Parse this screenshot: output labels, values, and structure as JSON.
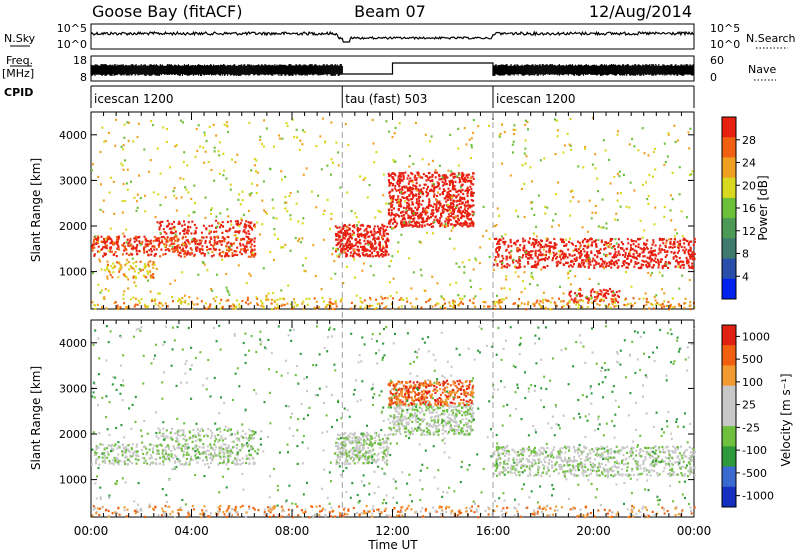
{
  "header": {
    "station": "Goose Bay (fitACF)",
    "beam": "Beam 07",
    "date": "12/Aug/2014"
  },
  "summary_rows": {
    "nsky": {
      "label": "N.Sky",
      "tick_top": "10^5",
      "tick_bottom": "10^0",
      "right_label": "N.Search",
      "right_tick_top": "10^5",
      "right_tick_bottom": "10^0"
    },
    "freq": {
      "label_line1": "Freq.",
      "label_line2": "[MHz]",
      "tick_top": "18",
      "tick_bottom": "8",
      "right_label": "Nave",
      "right_tick_top": "60",
      "right_tick_bottom": "0"
    },
    "cpid": {
      "label": "CPID",
      "segments": [
        {
          "start_hour": 0,
          "end_hour": 10,
          "text": "icescan 1200"
        },
        {
          "start_hour": 10,
          "end_hour": 16,
          "text": "tau (fast) 503"
        },
        {
          "start_hour": 16,
          "end_hour": 24,
          "text": "icescan 1200"
        }
      ]
    }
  },
  "colors": {
    "power_scale": [
      "#0022ee",
      "#2a4faa",
      "#3f7a6e",
      "#4c9a55",
      "#6cc03a",
      "#d8d820",
      "#f0a020",
      "#f06010",
      "#e82010"
    ],
    "velocity_scale": [
      "#1530c0",
      "#3a6ad0",
      "#2e9a3c",
      "#70c040",
      "#c8c8c8",
      "#c8c8c8",
      "#f09a30",
      "#f06010",
      "#e02010"
    ],
    "gray": "#c0c0c0"
  },
  "chart_data": [
    {
      "type": "heatmap",
      "title": "Power",
      "ylabel": "Slant Range [km]",
      "xlabel": "Time UT",
      "x_ticks": [
        "00:00",
        "04:00",
        "08:00",
        "12:00",
        "16:00",
        "20:00",
        "00:00"
      ],
      "y_ticks": [
        1000,
        2000,
        3000,
        4000
      ],
      "ylim": [
        180,
        4500
      ],
      "xlim_hours": [
        0,
        24
      ],
      "colorbar": {
        "label": "Power [dB]",
        "ticks": [
          "4",
          "8",
          "12",
          "16",
          "20",
          "24",
          "28"
        ],
        "range": [
          0,
          30
        ]
      },
      "regions": [
        {
          "t0": 0.0,
          "t1": 6.5,
          "r0": 1350,
          "r1": 1800,
          "level": 8,
          "density": 0.55
        },
        {
          "t0": 2.5,
          "t1": 6.5,
          "r0": 1850,
          "r1": 2150,
          "level": 10,
          "density": 0.35
        },
        {
          "t0": 0.5,
          "t1": 2.5,
          "r0": 850,
          "r1": 1250,
          "level": 6,
          "density": 0.35
        },
        {
          "t0": 9.7,
          "t1": 11.8,
          "r0": 1350,
          "r1": 2050,
          "level": 18,
          "density": 0.8
        },
        {
          "t0": 11.8,
          "t1": 15.2,
          "r0": 2000,
          "r1": 3200,
          "level": 12,
          "density": 0.7
        },
        {
          "t0": 16.0,
          "t1": 24.0,
          "r0": 1100,
          "r1": 1750,
          "level": 9,
          "density": 0.5
        },
        {
          "t0": 19.0,
          "t1": 21.0,
          "r0": 350,
          "r1": 650,
          "level": 16,
          "density": 0.45
        },
        {
          "t0": 0.0,
          "t1": 24.0,
          "r0": 200,
          "r1": 450,
          "level": 6,
          "density": 0.25
        },
        {
          "t0": 0.0,
          "t1": 24.0,
          "r0": 450,
          "r1": 4400,
          "level": 5,
          "density": 0.03
        }
      ]
    },
    {
      "type": "heatmap",
      "title": "Velocity",
      "ylabel": "Slant Range [km]",
      "xlabel": "Time UT",
      "x_ticks": [
        "00:00",
        "04:00",
        "08:00",
        "12:00",
        "16:00",
        "20:00",
        "00:00"
      ],
      "y_ticks": [
        1000,
        2000,
        3000,
        4000
      ],
      "ylim": [
        180,
        4500
      ],
      "xlim_hours": [
        0,
        24
      ],
      "colorbar": {
        "label": "Velocity [m s⁻¹]",
        "ticks": [
          "1000",
          "500",
          "100",
          "25",
          "-25",
          "-100",
          "-500",
          "-1000"
        ],
        "range": [
          1000,
          -1000
        ]
      },
      "regions": [
        {
          "t0": 0.0,
          "t1": 6.5,
          "r0": 1350,
          "r1": 1800,
          "level": 4,
          "density": 0.5
        },
        {
          "t0": 2.5,
          "t1": 6.5,
          "r0": 1850,
          "r1": 2150,
          "level": 4,
          "density": 0.35
        },
        {
          "t0": 9.7,
          "t1": 11.8,
          "r0": 1350,
          "r1": 2050,
          "level": 4,
          "density": 0.75
        },
        {
          "t0": 11.8,
          "t1": 15.2,
          "r0": 2000,
          "r1": 2700,
          "level": 4,
          "density": 0.6
        },
        {
          "t0": 11.8,
          "t1": 15.2,
          "r0": 2650,
          "r1": 3200,
          "level": 7,
          "density": 0.7
        },
        {
          "t0": 16.0,
          "t1": 24.0,
          "r0": 1100,
          "r1": 1750,
          "level": 4,
          "density": 0.5
        },
        {
          "t0": 0.0,
          "t1": 24.0,
          "r0": 200,
          "r1": 450,
          "level": 6,
          "density": 0.25
        },
        {
          "t0": 0.0,
          "t1": 24.0,
          "r0": 450,
          "r1": 4400,
          "level": 3,
          "density": 0.03
        }
      ]
    }
  ]
}
